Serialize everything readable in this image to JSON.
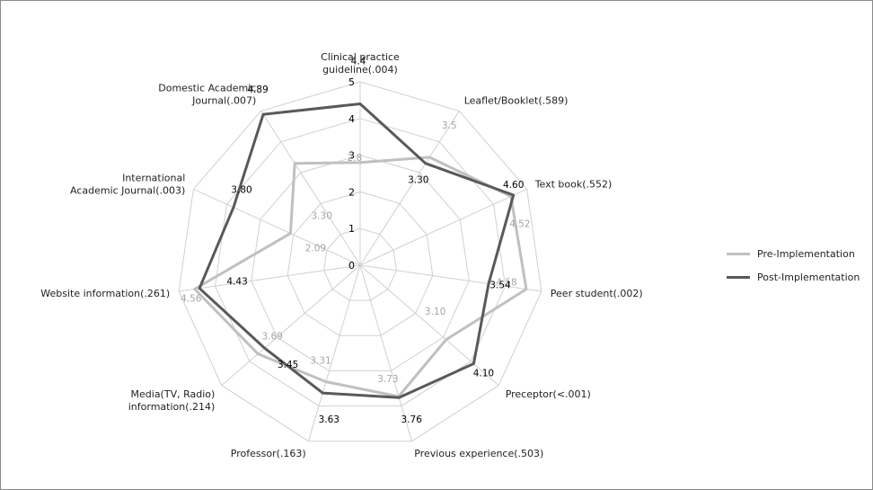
{
  "chart_data": {
    "type": "radar",
    "axes": [
      [
        "Clinical practice",
        "guideline(.004)"
      ],
      [
        "Leaflet/Booklet(.589)"
      ],
      [
        "Text book(.552)"
      ],
      [
        "Peer student(.002)"
      ],
      [
        "Preceptor(<.001)"
      ],
      [
        "Previous experience(.503)"
      ],
      [
        "Professor(.163)"
      ],
      [
        "Media(TV, Radio)",
        "information(.214)"
      ],
      [
        "Website information(.261)"
      ],
      [
        "International",
        "Academic Journal(.003)"
      ],
      [
        "Domestic Academic",
        "Journal(.007)"
      ]
    ],
    "rlim": [
      0,
      5
    ],
    "ticks": [
      "0",
      "1",
      "2",
      "3",
      "4",
      "5"
    ],
    "series": [
      {
        "name": "Pre-Implementation",
        "color": "#c0c0c0",
        "values": [
          2.8,
          3.5,
          4.52,
          4.58,
          3.1,
          3.73,
          3.31,
          3.69,
          4.56,
          2.09,
          3.3
        ],
        "labels": [
          "2.8",
          "3.5",
          "4.52",
          "4.58",
          "3.10",
          "3.73",
          "3.31",
          "3.69",
          "4.56",
          "2.09",
          "3.30"
        ]
      },
      {
        "name": "Post-Implementation",
        "color": "#595959",
        "values": [
          4.4,
          3.3,
          4.6,
          3.54,
          4.1,
          3.76,
          3.63,
          3.45,
          4.43,
          3.8,
          4.89
        ],
        "labels": [
          "4.4",
          "3.30",
          "4.60",
          "3.54",
          "4.10",
          "3.76",
          "3.63",
          "3.45",
          "4.43",
          "3.80",
          "4.89"
        ]
      }
    ],
    "grid": true,
    "legend_position": "right"
  }
}
